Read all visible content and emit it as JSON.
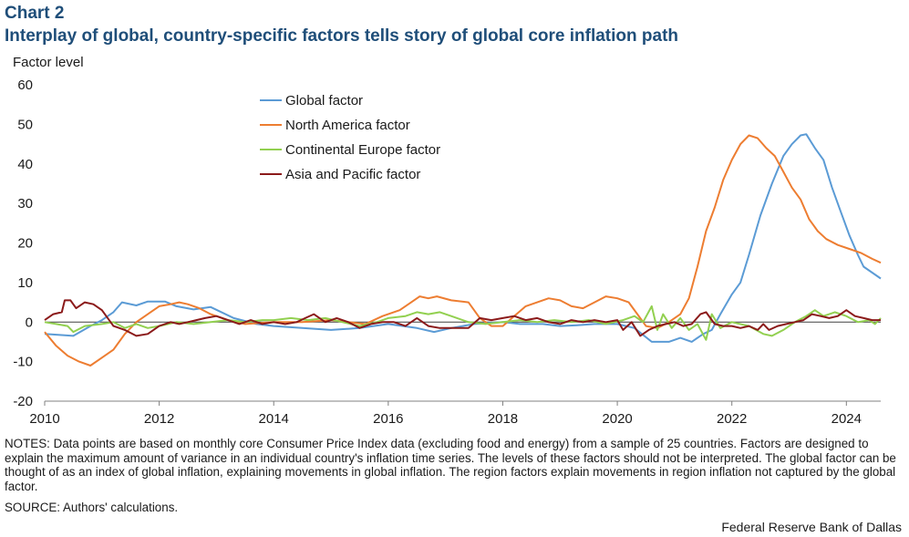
{
  "chart_number": "Chart 2",
  "title": "Interplay of global, country-specific factors tells story of global core inflation path",
  "notes": "NOTES: Data points are based on monthly core Consumer Price Index data (excluding food and energy) from a sample of 25 countries. Factors are designed to explain the maximum amount of variance in an individual  country's inflation time series. The levels of these factors should not be interpreted. The global factor can be thought of as an index of global inflation, explaining  movements in global inflation. The region factors explain movements in region inflation  not captured by the global factor.",
  "source": "SOURCE: Authors' calculations.",
  "credit": "Federal Reserve Bank of Dallas",
  "chart_data": {
    "type": "line",
    "title": "Interplay of global, country-specific factors tells story of global core inflation path",
    "ylabel": "Factor level",
    "xlabel": "",
    "xlim": [
      2010,
      2024.6
    ],
    "ylim": [
      -20,
      60
    ],
    "x_ticks": [
      2010,
      2012,
      2014,
      2016,
      2018,
      2020,
      2022,
      2024
    ],
    "y_ticks": [
      -20,
      -10,
      0,
      10,
      20,
      30,
      40,
      50,
      60
    ],
    "legend_position": "upper-left-center",
    "series": [
      {
        "name": "Global factor",
        "color": "#5b9bd5",
        "points": [
          [
            2010,
            -3
          ],
          [
            2010.5,
            -3.5
          ],
          [
            2010.8,
            -1
          ],
          [
            2011,
            0.5
          ],
          [
            2011.2,
            2.5
          ],
          [
            2011.35,
            5
          ],
          [
            2011.6,
            4.2
          ],
          [
            2011.8,
            5.2
          ],
          [
            2012.1,
            5.2
          ],
          [
            2012.3,
            4
          ],
          [
            2012.6,
            3.2
          ],
          [
            2012.9,
            3.8
          ],
          [
            2013.3,
            1
          ],
          [
            2013.7,
            -0.5
          ],
          [
            2014,
            -1
          ],
          [
            2014.5,
            -1.5
          ],
          [
            2015,
            -2
          ],
          [
            2015.5,
            -1.5
          ],
          [
            2016,
            -0.5
          ],
          [
            2016.5,
            -1.5
          ],
          [
            2016.8,
            -2.5
          ],
          [
            2017.1,
            -1.5
          ],
          [
            2017.5,
            -0.5
          ],
          [
            2018,
            0
          ],
          [
            2018.3,
            -0.5
          ],
          [
            2018.7,
            -0.5
          ],
          [
            2019,
            -1
          ],
          [
            2019.3,
            -0.8
          ],
          [
            2019.6,
            -0.5
          ],
          [
            2020,
            -0.5
          ],
          [
            2020.3,
            -1.5
          ],
          [
            2020.6,
            -5
          ],
          [
            2020.9,
            -5
          ],
          [
            2021.1,
            -4
          ],
          [
            2021.3,
            -5
          ],
          [
            2021.5,
            -3
          ],
          [
            2021.65,
            -2
          ],
          [
            2021.8,
            2
          ],
          [
            2022,
            7
          ],
          [
            2022.15,
            10
          ],
          [
            2022.3,
            17
          ],
          [
            2022.5,
            27
          ],
          [
            2022.7,
            35
          ],
          [
            2022.9,
            42
          ],
          [
            2023.05,
            45
          ],
          [
            2023.2,
            47.2
          ],
          [
            2023.3,
            47.5
          ],
          [
            2023.45,
            44
          ],
          [
            2023.6,
            41
          ],
          [
            2023.75,
            34
          ],
          [
            2023.9,
            28
          ],
          [
            2024.05,
            22
          ],
          [
            2024.2,
            17
          ],
          [
            2024.3,
            14
          ],
          [
            2024.45,
            12.5
          ],
          [
            2024.6,
            11
          ]
        ]
      },
      {
        "name": "North America factor",
        "color": "#ed7d31",
        "points": [
          [
            2010,
            -2.5
          ],
          [
            2010.2,
            -6
          ],
          [
            2010.4,
            -8.5
          ],
          [
            2010.6,
            -10
          ],
          [
            2010.8,
            -11
          ],
          [
            2011,
            -9
          ],
          [
            2011.2,
            -7
          ],
          [
            2011.4,
            -3
          ],
          [
            2011.6,
            0
          ],
          [
            2011.8,
            2
          ],
          [
            2012,
            4
          ],
          [
            2012.2,
            4.5
          ],
          [
            2012.35,
            5
          ],
          [
            2012.5,
            4.5
          ],
          [
            2012.7,
            3.5
          ],
          [
            2012.9,
            2
          ],
          [
            2013.2,
            0.5
          ],
          [
            2013.5,
            -0.5
          ],
          [
            2014,
            0
          ],
          [
            2014.5,
            0
          ],
          [
            2015,
            0.5
          ],
          [
            2015.3,
            0
          ],
          [
            2015.6,
            -0.5
          ],
          [
            2015.9,
            1.5
          ],
          [
            2016.2,
            3
          ],
          [
            2016.4,
            5
          ],
          [
            2016.55,
            6.5
          ],
          [
            2016.7,
            6
          ],
          [
            2016.85,
            6.5
          ],
          [
            2017.1,
            5.5
          ],
          [
            2017.4,
            5
          ],
          [
            2017.6,
            1
          ],
          [
            2017.8,
            -1
          ],
          [
            2018,
            -1
          ],
          [
            2018.2,
            1.5
          ],
          [
            2018.4,
            4
          ],
          [
            2018.6,
            5
          ],
          [
            2018.8,
            6
          ],
          [
            2019,
            5.5
          ],
          [
            2019.2,
            4
          ],
          [
            2019.4,
            3.5
          ],
          [
            2019.6,
            5
          ],
          [
            2019.8,
            6.5
          ],
          [
            2020,
            6
          ],
          [
            2020.2,
            5
          ],
          [
            2020.35,
            2
          ],
          [
            2020.5,
            -1
          ],
          [
            2020.7,
            -1.5
          ],
          [
            2020.9,
            0
          ],
          [
            2021.1,
            2
          ],
          [
            2021.25,
            6
          ],
          [
            2021.4,
            14
          ],
          [
            2021.55,
            23
          ],
          [
            2021.7,
            29
          ],
          [
            2021.85,
            36
          ],
          [
            2022,
            41
          ],
          [
            2022.15,
            45
          ],
          [
            2022.3,
            47.2
          ],
          [
            2022.45,
            46.5
          ],
          [
            2022.6,
            44
          ],
          [
            2022.75,
            42
          ],
          [
            2022.9,
            38
          ],
          [
            2023.05,
            34
          ],
          [
            2023.2,
            31
          ],
          [
            2023.35,
            26
          ],
          [
            2023.5,
            23
          ],
          [
            2023.65,
            21
          ],
          [
            2023.85,
            19.5
          ],
          [
            2024.05,
            18.5
          ],
          [
            2024.25,
            17.5
          ],
          [
            2024.45,
            16
          ],
          [
            2024.6,
            15
          ]
        ]
      },
      {
        "name": "Continental Europe factor",
        "color": "#92d050",
        "points": [
          [
            2010,
            0
          ],
          [
            2010.2,
            -0.5
          ],
          [
            2010.4,
            -1
          ],
          [
            2010.5,
            -2.5
          ],
          [
            2010.7,
            -1
          ],
          [
            2011,
            -0.5
          ],
          [
            2011.2,
            0
          ],
          [
            2011.4,
            -1.5
          ],
          [
            2011.6,
            -0.5
          ],
          [
            2011.8,
            -1.5
          ],
          [
            2012,
            -1
          ],
          [
            2012.3,
            0
          ],
          [
            2012.6,
            -0.5
          ],
          [
            2012.9,
            0
          ],
          [
            2013.2,
            0.5
          ],
          [
            2013.5,
            0
          ],
          [
            2013.8,
            0.5
          ],
          [
            2014,
            0.5
          ],
          [
            2014.3,
            1
          ],
          [
            2014.6,
            0.5
          ],
          [
            2014.9,
            1
          ],
          [
            2015.2,
            0
          ],
          [
            2015.5,
            -1
          ],
          [
            2015.8,
            0
          ],
          [
            2016,
            1
          ],
          [
            2016.3,
            1.5
          ],
          [
            2016.5,
            2.5
          ],
          [
            2016.7,
            2
          ],
          [
            2016.9,
            2.5
          ],
          [
            2017.1,
            1.5
          ],
          [
            2017.4,
            0
          ],
          [
            2017.7,
            -0.5
          ],
          [
            2018,
            0
          ],
          [
            2018.3,
            0.5
          ],
          [
            2018.6,
            0
          ],
          [
            2018.9,
            0.5
          ],
          [
            2019.2,
            0
          ],
          [
            2019.5,
            0.5
          ],
          [
            2019.8,
            -0.5
          ],
          [
            2020.1,
            0.5
          ],
          [
            2020.3,
            1.5
          ],
          [
            2020.45,
            0
          ],
          [
            2020.6,
            4
          ],
          [
            2020.7,
            -2
          ],
          [
            2020.8,
            2
          ],
          [
            2020.95,
            -1.5
          ],
          [
            2021.1,
            1
          ],
          [
            2021.25,
            -2
          ],
          [
            2021.4,
            -0.5
          ],
          [
            2021.55,
            -4.5
          ],
          [
            2021.65,
            2
          ],
          [
            2021.8,
            -1.5
          ],
          [
            2022,
            0
          ],
          [
            2022.3,
            -1
          ],
          [
            2022.55,
            -3
          ],
          [
            2022.7,
            -3.5
          ],
          [
            2022.9,
            -2
          ],
          [
            2023.1,
            0
          ],
          [
            2023.3,
            1.5
          ],
          [
            2023.45,
            3
          ],
          [
            2023.6,
            1.5
          ],
          [
            2023.8,
            2.5
          ],
          [
            2024,
            1.5
          ],
          [
            2024.2,
            0
          ],
          [
            2024.4,
            0.5
          ],
          [
            2024.5,
            -0.5
          ],
          [
            2024.6,
            1
          ]
        ]
      },
      {
        "name": "Asia and Pacific factor",
        "color": "#8b1a1a",
        "points": [
          [
            2010,
            0.5
          ],
          [
            2010.15,
            2
          ],
          [
            2010.3,
            2.5
          ],
          [
            2010.35,
            5.5
          ],
          [
            2010.45,
            5.5
          ],
          [
            2010.55,
            3.5
          ],
          [
            2010.7,
            5
          ],
          [
            2010.85,
            4.5
          ],
          [
            2011,
            3
          ],
          [
            2011.2,
            -1
          ],
          [
            2011.4,
            -2
          ],
          [
            2011.6,
            -3.5
          ],
          [
            2011.8,
            -3
          ],
          [
            2012,
            -1
          ],
          [
            2012.2,
            0
          ],
          [
            2012.35,
            -0.5
          ],
          [
            2012.5,
            0
          ],
          [
            2012.65,
            0.5
          ],
          [
            2012.8,
            1
          ],
          [
            2013,
            1.5
          ],
          [
            2013.2,
            0.5
          ],
          [
            2013.4,
            -0.5
          ],
          [
            2013.6,
            0.5
          ],
          [
            2013.8,
            -0.5
          ],
          [
            2014,
            0
          ],
          [
            2014.2,
            -0.5
          ],
          [
            2014.4,
            0
          ],
          [
            2014.55,
            1
          ],
          [
            2014.7,
            2
          ],
          [
            2014.9,
            0
          ],
          [
            2015.1,
            1
          ],
          [
            2015.3,
            0
          ],
          [
            2015.5,
            -1.5
          ],
          [
            2015.7,
            -0.5
          ],
          [
            2015.9,
            0
          ],
          [
            2016.1,
            0
          ],
          [
            2016.3,
            -1
          ],
          [
            2016.5,
            1
          ],
          [
            2016.7,
            -1
          ],
          [
            2016.9,
            -1.5
          ],
          [
            2017.2,
            -1.5
          ],
          [
            2017.4,
            -1.5
          ],
          [
            2017.6,
            1
          ],
          [
            2017.8,
            0.5
          ],
          [
            2018,
            1
          ],
          [
            2018.2,
            1.5
          ],
          [
            2018.4,
            0.5
          ],
          [
            2018.6,
            1
          ],
          [
            2018.8,
            0
          ],
          [
            2019,
            -0.5
          ],
          [
            2019.2,
            0.5
          ],
          [
            2019.4,
            0
          ],
          [
            2019.6,
            0.5
          ],
          [
            2019.8,
            0
          ],
          [
            2020,
            0.5
          ],
          [
            2020.1,
            -2
          ],
          [
            2020.25,
            0
          ],
          [
            2020.4,
            -3.5
          ],
          [
            2020.55,
            -2
          ],
          [
            2020.7,
            -1
          ],
          [
            2020.85,
            -0.5
          ],
          [
            2021,
            0
          ],
          [
            2021.15,
            -1
          ],
          [
            2021.3,
            -0.5
          ],
          [
            2021.45,
            2
          ],
          [
            2021.55,
            2.5
          ],
          [
            2021.7,
            -0.5
          ],
          [
            2021.85,
            -1
          ],
          [
            2022,
            -1
          ],
          [
            2022.15,
            -1.5
          ],
          [
            2022.3,
            -1
          ],
          [
            2022.45,
            -2
          ],
          [
            2022.55,
            -0.5
          ],
          [
            2022.65,
            -2
          ],
          [
            2022.8,
            -1
          ],
          [
            2022.95,
            -0.5
          ],
          [
            2023.1,
            0
          ],
          [
            2023.25,
            0.5
          ],
          [
            2023.4,
            2
          ],
          [
            2023.55,
            1.5
          ],
          [
            2023.7,
            1
          ],
          [
            2023.85,
            1.5
          ],
          [
            2024,
            3
          ],
          [
            2024.15,
            1.5
          ],
          [
            2024.3,
            1
          ],
          [
            2024.45,
            0.5
          ],
          [
            2024.6,
            0.5
          ]
        ]
      }
    ]
  }
}
